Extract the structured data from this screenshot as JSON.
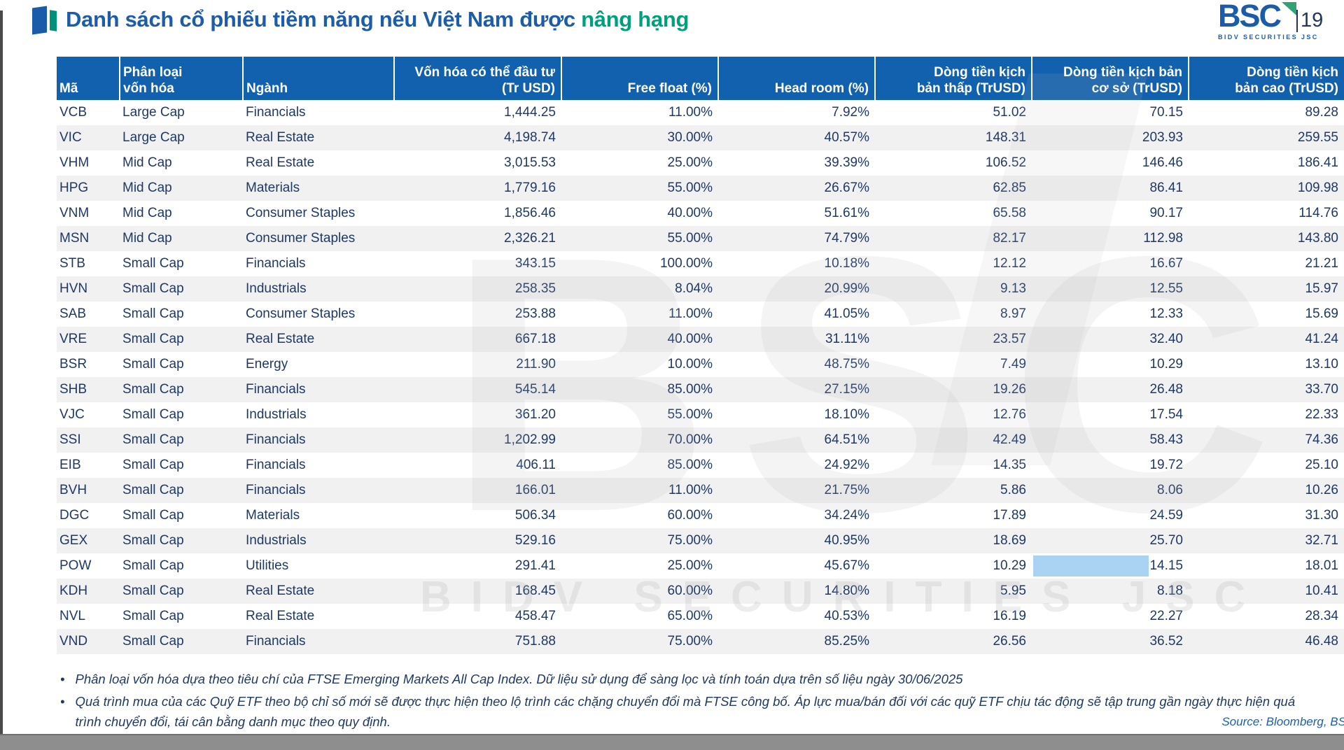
{
  "title": {
    "prefix": "Danh sách cổ phiếu tiềm năng nếu Việt Nam được ",
    "accent": "nâng hạng"
  },
  "logo": {
    "name": "BSC",
    "subtitle": "BIDV SECURITIES JSC",
    "page_number": "19"
  },
  "watermark": {
    "text": "BSC",
    "subtext": "BIDV SECURITIES JSC"
  },
  "footnote_bullet": "•",
  "table": {
    "columns": [
      "Mã",
      "Phân loại\nvốn hóa",
      "Ngành",
      "Vốn hóa có thể đầu tư\n(Tr USD)",
      "Free float (%)",
      "Head room (%)",
      "Dòng tiền kịch\nbản thấp (TrUSD)",
      "Dòng tiền kịch bản\ncơ sở (TrUSD)",
      "Dòng tiền kịch\nbản cao (TrUSD)"
    ],
    "rows": [
      [
        "VCB",
        "Large Cap",
        "Financials",
        "1,444.25",
        "11.00%",
        "7.92%",
        "51.02",
        "70.15",
        "89.28"
      ],
      [
        "VIC",
        "Large Cap",
        "Real Estate",
        "4,198.74",
        "30.00%",
        "40.57%",
        "148.31",
        "203.93",
        "259.55"
      ],
      [
        "VHM",
        "Mid Cap",
        "Real Estate",
        "3,015.53",
        "25.00%",
        "39.39%",
        "106.52",
        "146.46",
        "186.41"
      ],
      [
        "HPG",
        "Mid Cap",
        "Materials",
        "1,779.16",
        "55.00%",
        "26.67%",
        "62.85",
        "86.41",
        "109.98"
      ],
      [
        "VNM",
        "Mid Cap",
        "Consumer Staples",
        "1,856.46",
        "40.00%",
        "51.61%",
        "65.58",
        "90.17",
        "114.76"
      ],
      [
        "MSN",
        "Mid Cap",
        "Consumer Staples",
        "2,326.21",
        "55.00%",
        "74.79%",
        "82.17",
        "112.98",
        "143.80"
      ],
      [
        "STB",
        "Small Cap",
        "Financials",
        "343.15",
        "100.00%",
        "10.18%",
        "12.12",
        "16.67",
        "21.21"
      ],
      [
        "HVN",
        "Small Cap",
        "Industrials",
        "258.35",
        "8.04%",
        "20.99%",
        "9.13",
        "12.55",
        "15.97"
      ],
      [
        "SAB",
        "Small Cap",
        "Consumer Staples",
        "253.88",
        "11.00%",
        "41.05%",
        "8.97",
        "12.33",
        "15.69"
      ],
      [
        "VRE",
        "Small Cap",
        "Real Estate",
        "667.18",
        "40.00%",
        "31.11%",
        "23.57",
        "32.40",
        "41.24"
      ],
      [
        "BSR",
        "Small Cap",
        "Energy",
        "211.90",
        "10.00%",
        "48.75%",
        "7.49",
        "10.29",
        "13.10"
      ],
      [
        "SHB",
        "Small Cap",
        "Financials",
        "545.14",
        "85.00%",
        "27.15%",
        "19.26",
        "26.48",
        "33.70"
      ],
      [
        "VJC",
        "Small Cap",
        "Industrials",
        "361.20",
        "55.00%",
        "18.10%",
        "12.76",
        "17.54",
        "22.33"
      ],
      [
        "SSI",
        "Small Cap",
        "Financials",
        "1,202.99",
        "70.00%",
        "64.51%",
        "42.49",
        "58.43",
        "74.36"
      ],
      [
        "EIB",
        "Small Cap",
        "Financials",
        "406.11",
        "85.00%",
        "24.92%",
        "14.35",
        "19.72",
        "25.10"
      ],
      [
        "BVH",
        "Small Cap",
        "Financials",
        "166.01",
        "11.00%",
        "21.75%",
        "5.86",
        "8.06",
        "10.26"
      ],
      [
        "DGC",
        "Small Cap",
        "Materials",
        "506.34",
        "60.00%",
        "34.24%",
        "17.89",
        "24.59",
        "31.30"
      ],
      [
        "GEX",
        "Small Cap",
        "Industrials",
        "529.16",
        "75.00%",
        "40.95%",
        "18.69",
        "25.70",
        "32.71"
      ],
      [
        "POW",
        "Small Cap",
        "Utilities",
        "291.41",
        "25.00%",
        "45.67%",
        "10.29",
        "14.15",
        "18.01"
      ],
      [
        "KDH",
        "Small Cap",
        "Real Estate",
        "168.45",
        "60.00%",
        "14.80%",
        "5.95",
        "8.18",
        "10.41"
      ],
      [
        "NVL",
        "Small Cap",
        "Real Estate",
        "458.47",
        "65.00%",
        "40.53%",
        "16.19",
        "22.27",
        "28.34"
      ],
      [
        "VND",
        "Small Cap",
        "Financials",
        "751.88",
        "75.00%",
        "85.25%",
        "26.56",
        "36.52",
        "46.48"
      ]
    ],
    "highlight": {
      "row_index": 18,
      "col_index": 7
    }
  },
  "footnotes": [
    "Phân loại vốn hóa dựa theo tiêu chí của FTSE Emerging Markets All Cap Index. Dữ liệu sử dụng để sàng lọc và tính toán dựa trên số liệu ngày 30/06/2025",
    "Quá trình mua của các Quỹ ETF theo bộ chỉ số mới sẽ được thực hiện theo lộ trình các chặng chuyển đổi mà FTSE công bố. Áp lực mua/bán đối với các quỹ ETF chịu tác động sẽ tập trung gần ngày thực hiện quá trình chuyển đổi, tái cân bằng danh mục theo quy định."
  ],
  "source": "Source: Bloomberg, BS",
  "colors": {
    "header_bg": "#1261AE",
    "title_blue": "#1C5CA8",
    "title_accent": "#00A07E",
    "logo_blue": "#1A5CA9",
    "logo_flag_green": "#2FA376",
    "row_alt_bg": "#F1F1F2",
    "cell_text": "#1F3864",
    "highlight_cell": "#A9D2F3",
    "source_text": "#1F5FA8"
  }
}
